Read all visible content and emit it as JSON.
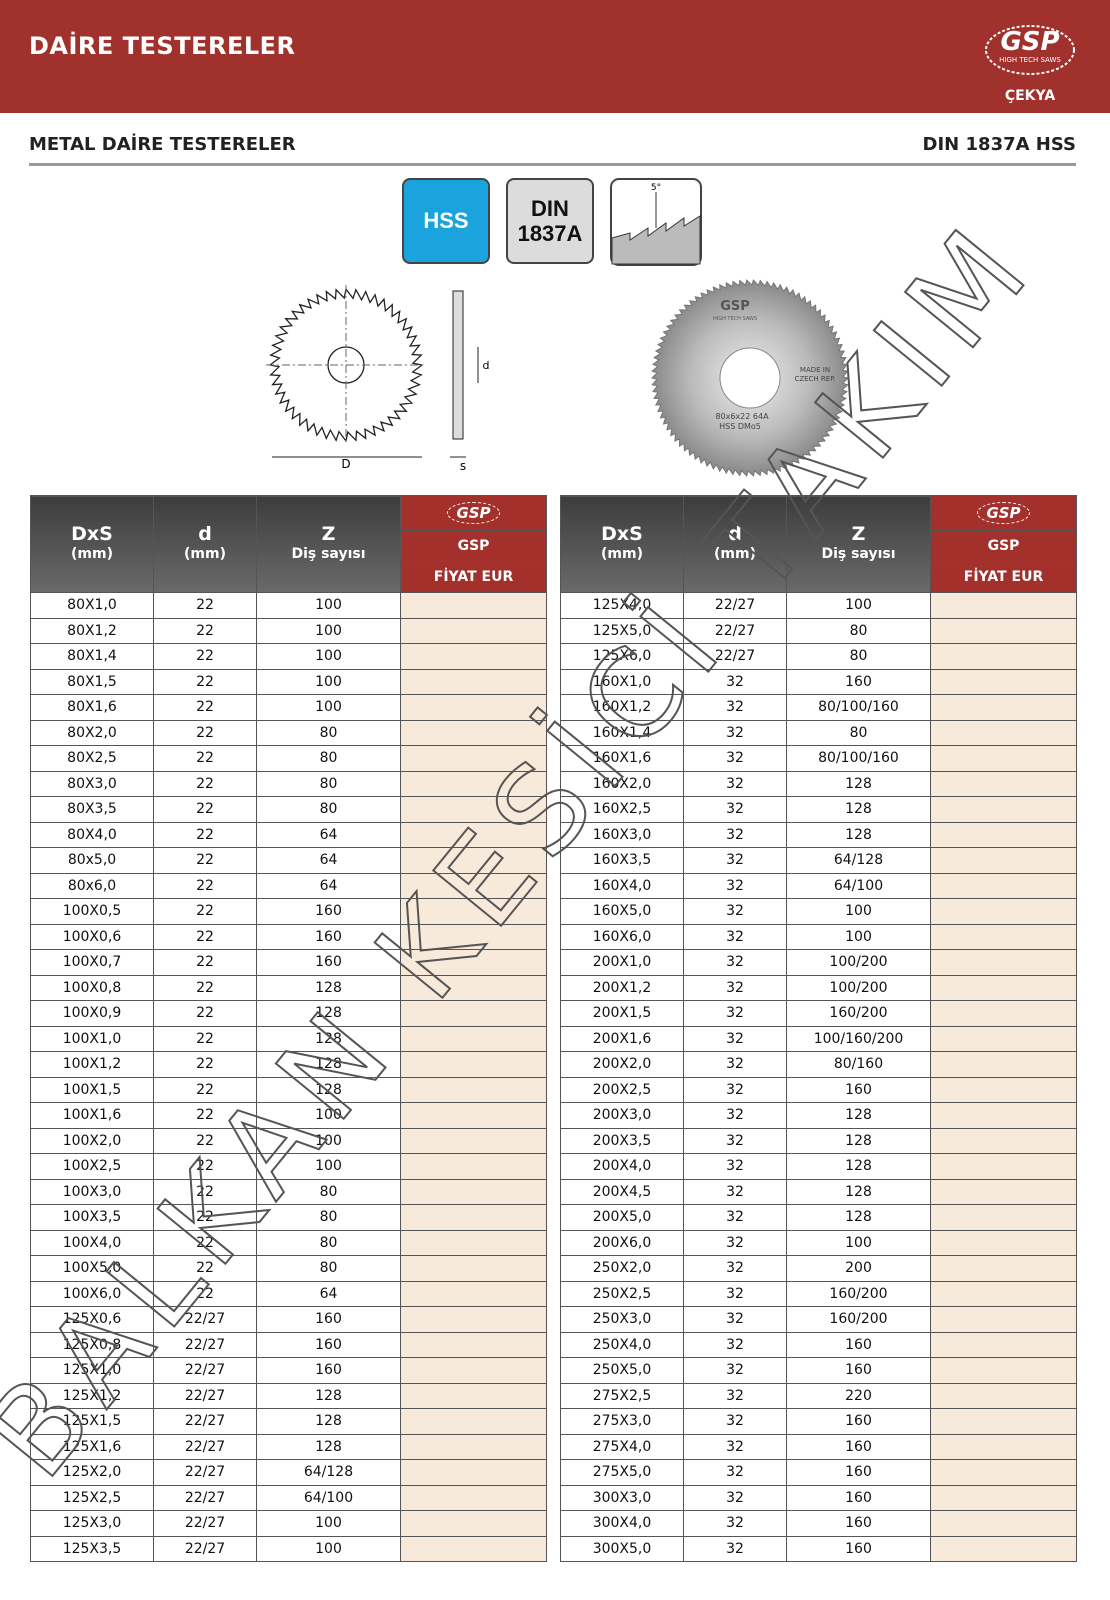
{
  "header": {
    "title": "DAİRE TESTERELER",
    "logo": "GSP",
    "logo_tagline": "HIGH TECH SAWS",
    "country": "ÇEKYA"
  },
  "subheader": {
    "left": "METAL DAİRE TESTERELER",
    "right": "DIN 1837A HSS"
  },
  "badges": {
    "hss": "HSS",
    "din": [
      "DIN",
      "1837A"
    ],
    "angle": "5°"
  },
  "drawing": {
    "D": "D",
    "s": "s",
    "d": "d"
  },
  "photo": {
    "logo": "GSP",
    "tagline": "HIGH TECH SAWS",
    "made_in": [
      "MADE IN",
      "CZECH REP."
    ],
    "marking": [
      "80x6x22  64A",
      "HSS  DMo5"
    ]
  },
  "table_header": {
    "dxs": "DxS",
    "dxs_unit": "(mm)",
    "d": "d",
    "d_unit": "(mm)",
    "z": "Z",
    "z_unit": "Diş sayısı",
    "brand_logo": "GSP",
    "brand": "GSP",
    "price": "FİYAT EUR"
  },
  "tables": [
    {
      "rows": [
        [
          "80X1,0",
          "22",
          "100"
        ],
        [
          "80X1,2",
          "22",
          "100"
        ],
        [
          "80X1,4",
          "22",
          "100"
        ],
        [
          "80X1,5",
          "22",
          "100"
        ],
        [
          "80X1,6",
          "22",
          "100"
        ],
        [
          "80X2,0",
          "22",
          "80"
        ],
        [
          "80X2,5",
          "22",
          "80"
        ],
        [
          "80X3,0",
          "22",
          "80"
        ],
        [
          "80X3,5",
          "22",
          "80"
        ],
        [
          "80X4,0",
          "22",
          "64"
        ],
        [
          "80x5,0",
          "22",
          "64"
        ],
        [
          "80x6,0",
          "22",
          "64"
        ],
        [
          "100X0,5",
          "22",
          "160"
        ],
        [
          "100X0,6",
          "22",
          "160"
        ],
        [
          "100X0,7",
          "22",
          "160"
        ],
        [
          "100X0,8",
          "22",
          "128"
        ],
        [
          "100X0,9",
          "22",
          "128"
        ],
        [
          "100X1,0",
          "22",
          "128"
        ],
        [
          "100X1,2",
          "22",
          "128"
        ],
        [
          "100X1,5",
          "22",
          "128"
        ],
        [
          "100X1,6",
          "22",
          "100"
        ],
        [
          "100X2,0",
          "22",
          "100"
        ],
        [
          "100X2,5",
          "22",
          "100"
        ],
        [
          "100X3,0",
          "22",
          "80"
        ],
        [
          "100X3,5",
          "22",
          "80"
        ],
        [
          "100X4,0",
          "22",
          "80"
        ],
        [
          "100X5,0",
          "22",
          "80"
        ],
        [
          "100X6,0",
          "22",
          "64"
        ],
        [
          "125X0,6",
          "22/27",
          "160"
        ],
        [
          "125X0,8",
          "22/27",
          "160"
        ],
        [
          "125X1,0",
          "22/27",
          "160"
        ],
        [
          "125X1,2",
          "22/27",
          "128"
        ],
        [
          "125X1,5",
          "22/27",
          "128"
        ],
        [
          "125X1,6",
          "22/27",
          "128"
        ],
        [
          "125X2,0",
          "22/27",
          "64/128"
        ],
        [
          "125X2,5",
          "22/27",
          "64/100"
        ],
        [
          "125X3,0",
          "22/27",
          "100"
        ],
        [
          "125X3,5",
          "22/27",
          "100"
        ]
      ]
    },
    {
      "rows": [
        [
          "125X4,0",
          "22/27",
          "100"
        ],
        [
          "125X5,0",
          "22/27",
          "80"
        ],
        [
          "125X6,0",
          "22/27",
          "80"
        ],
        [
          "160X1,0",
          "32",
          "160"
        ],
        [
          "160X1,2",
          "32",
          "80/100/160"
        ],
        [
          "160X1,4",
          "32",
          "80"
        ],
        [
          "160X1,6",
          "32",
          "80/100/160"
        ],
        [
          "160X2,0",
          "32",
          "128"
        ],
        [
          "160X2,5",
          "32",
          "128"
        ],
        [
          "160X3,0",
          "32",
          "128"
        ],
        [
          "160X3,5",
          "32",
          "64/128"
        ],
        [
          "160X4,0",
          "32",
          "64/100"
        ],
        [
          "160X5,0",
          "32",
          "100"
        ],
        [
          "160X6,0",
          "32",
          "100"
        ],
        [
          "200X1,0",
          "32",
          "100/200"
        ],
        [
          "200X1,2",
          "32",
          "100/200"
        ],
        [
          "200X1,5",
          "32",
          "160/200"
        ],
        [
          "200X1,6",
          "32",
          "100/160/200"
        ],
        [
          "200X2,0",
          "32",
          "80/160"
        ],
        [
          "200X2,5",
          "32",
          "160"
        ],
        [
          "200X3,0",
          "32",
          "128"
        ],
        [
          "200X3,5",
          "32",
          "128"
        ],
        [
          "200X4,0",
          "32",
          "128"
        ],
        [
          "200X4,5",
          "32",
          "128"
        ],
        [
          "200X5,0",
          "32",
          "128"
        ],
        [
          "200X6,0",
          "32",
          "100"
        ],
        [
          "250X2,0",
          "32",
          "200"
        ],
        [
          "250X2,5",
          "32",
          "160/200"
        ],
        [
          "250X3,0",
          "32",
          "160/200"
        ],
        [
          "250X4,0",
          "32",
          "160"
        ],
        [
          "250X5,0",
          "32",
          "160"
        ],
        [
          "275X2,5",
          "32",
          "220"
        ],
        [
          "275X3,0",
          "32",
          "160"
        ],
        [
          "275X4,0",
          "32",
          "160"
        ],
        [
          "275X5,0",
          "32",
          "160"
        ],
        [
          "300X3,0",
          "32",
          "160"
        ],
        [
          "300X4,0",
          "32",
          "160"
        ],
        [
          "300X5,0",
          "32",
          "160"
        ]
      ]
    }
  ],
  "watermark": "BALKAN KESİCİ TAKIM"
}
